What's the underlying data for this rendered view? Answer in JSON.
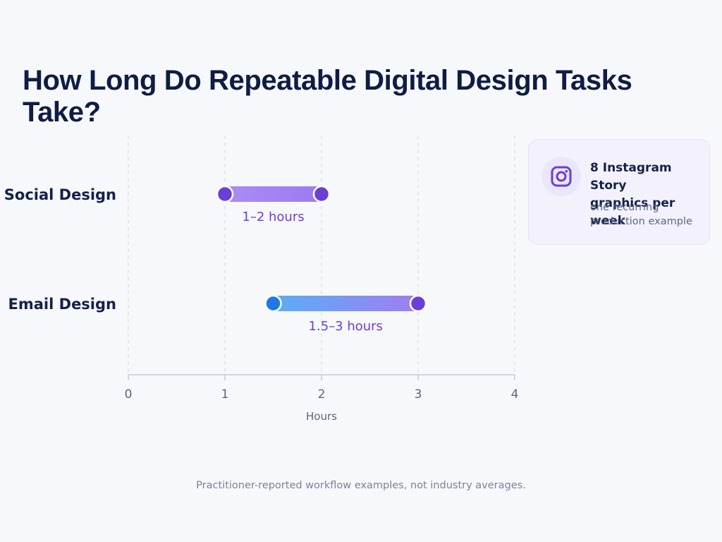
{
  "chart_data": {
    "type": "range-bar",
    "title": "How Long Do Repeatable Digital Design Tasks Take?",
    "xlabel": "Hours",
    "xlim": [
      0,
      4
    ],
    "xticks": [
      0,
      1,
      2,
      3,
      4
    ],
    "grid": "vertical-dashed",
    "categories": [
      "Social Design",
      "Email Design"
    ],
    "ranges": [
      {
        "category": "Social Design",
        "start": 1,
        "end": 2,
        "label": "1–2 hours"
      },
      {
        "category": "Email Design",
        "start": 1.5,
        "end": 3,
        "label": "1.5–3 hours"
      }
    ],
    "colors": {
      "purple": "#6a3fd6",
      "light_purple": "#a98cf3",
      "blue": "#1f78e8",
      "light_blue": "#5aaef5"
    }
  },
  "callout": {
    "icon": "instagram-icon",
    "headline_line1": "8 Instagram Story",
    "headline_line2": "graphics per week",
    "sub_line1": "one recurring",
    "sub_line2": "production example"
  },
  "footnote": "Practitioner-reported workflow examples, not industry averages."
}
